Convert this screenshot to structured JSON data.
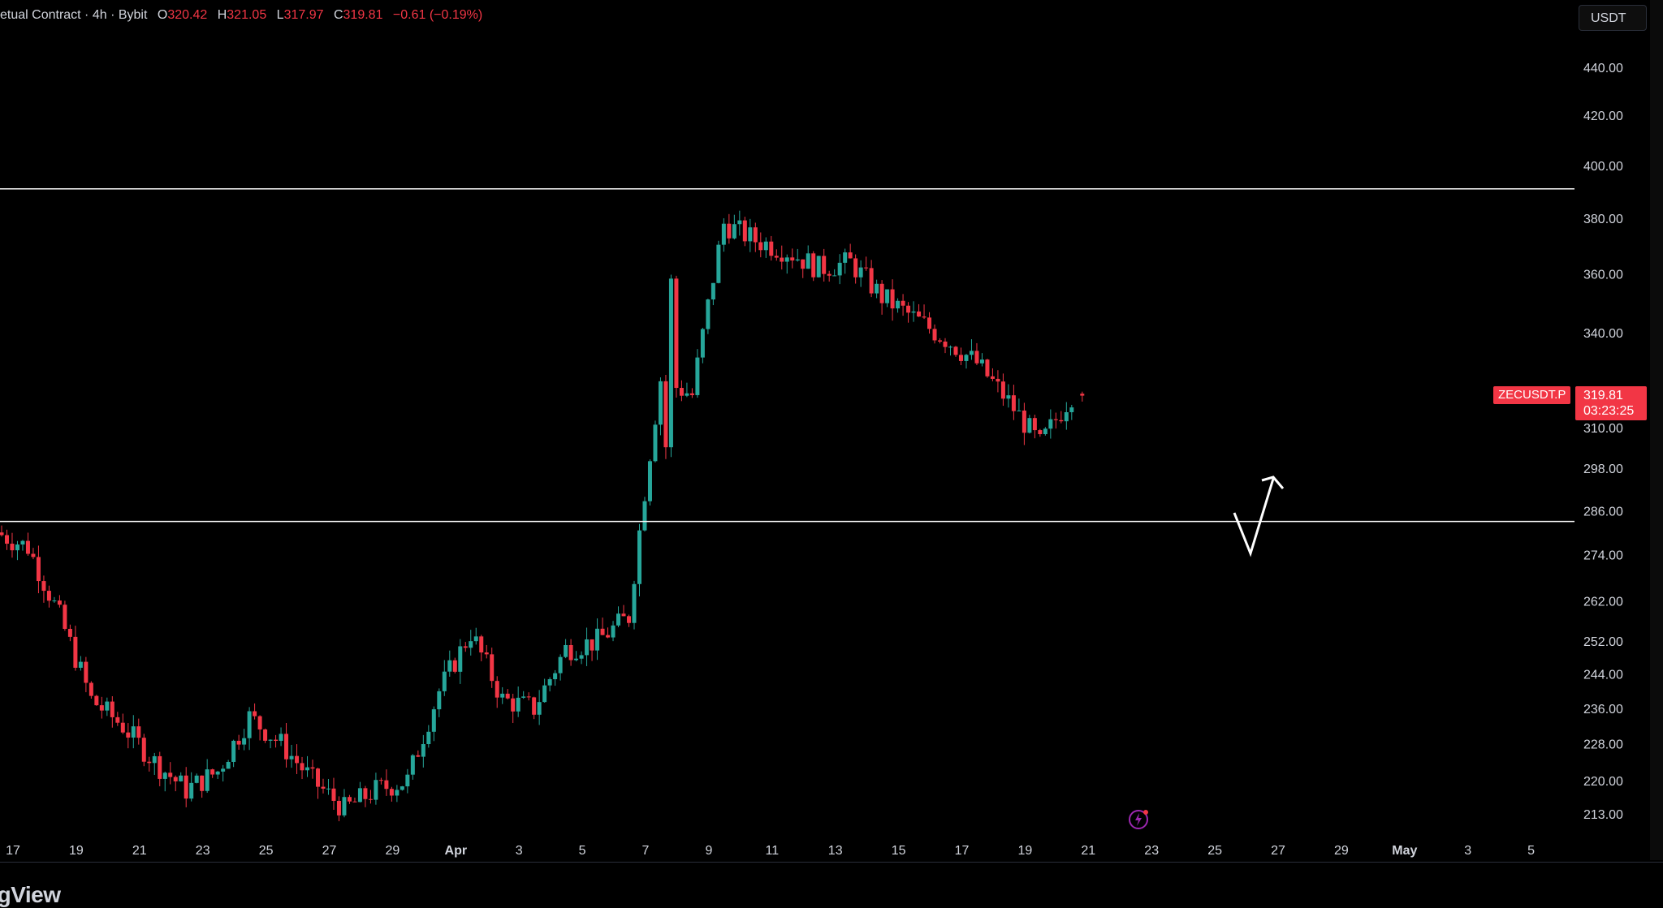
{
  "legend": {
    "title": "etual Contract · 4h · Bybit",
    "o_label": "O",
    "o_value": "320.42",
    "h_label": "H",
    "h_value": "321.05",
    "l_label": "L",
    "l_value": "317.97",
    "c_label": "C",
    "c_value": "319.81",
    "change": "−0.61 (−0.19%)"
  },
  "currency": "USDT",
  "symbol_tag": "ZECUSDT.P",
  "price_tag": {
    "price": "319.81",
    "countdown": "03:23:25"
  },
  "brand": "ngView",
  "colors": {
    "up": "#26a69a",
    "down": "#f23645",
    "background": "#000000",
    "line": "#ffffff",
    "text": "#d1d4dc",
    "bolt": "#9c27b0"
  },
  "chart_data": {
    "type": "candlestick",
    "symbol": "ZECUSDT.P",
    "interval": "4h",
    "exchange": "Bybit",
    "price_axis": {
      "ticks": [
        440,
        420,
        400,
        380,
        360,
        340,
        310,
        298,
        286,
        274,
        262,
        252,
        244,
        236,
        228,
        220,
        213
      ],
      "tick_labels": [
        "440.00",
        "420.00",
        "400.00",
        "380.00",
        "360.00",
        "340.00",
        "310.00",
        "298.00",
        "286.00",
        "274.00",
        "262.00",
        "252.00",
        "244.00",
        "236.00",
        "228.00",
        "220.00",
        "213.00"
      ],
      "scale": "log"
    },
    "time_axis": {
      "labels": [
        "17",
        "19",
        "21",
        "23",
        "25",
        "27",
        "29",
        "Apr",
        "3",
        "5",
        "7",
        "9",
        "11",
        "13",
        "15",
        "17",
        "19",
        "21",
        "23",
        "25",
        "27",
        "29",
        "May",
        "3",
        "5"
      ],
      "bold": [
        "Apr",
        "May"
      ]
    },
    "horizontal_lines": [
      391,
      283
    ],
    "path_points": [
      [
        "17",
        280
      ],
      [
        "18",
        276
      ],
      [
        "19",
        258
      ],
      [
        "20",
        238
      ],
      [
        "21",
        232
      ],
      [
        "22",
        224
      ],
      [
        "23",
        218
      ],
      [
        "24",
        222
      ],
      [
        "25",
        234
      ],
      [
        "26",
        228
      ],
      [
        "27",
        220
      ],
      [
        "28",
        214
      ],
      [
        "29",
        218
      ],
      [
        "30",
        220
      ],
      [
        "Apr 1",
        240
      ],
      [
        "Apr 2",
        254
      ],
      [
        "Apr 3",
        238
      ],
      [
        "Apr 4",
        236
      ],
      [
        "Apr 5",
        250
      ],
      [
        "Apr 6",
        252
      ],
      [
        "Apr 7",
        258
      ],
      [
        "Apr 8",
        325
      ],
      [
        "Apr 9",
        320
      ],
      [
        "Apr 10",
        378
      ],
      [
        "Apr 11",
        372
      ],
      [
        "Apr 12",
        368
      ],
      [
        "Apr 13",
        362
      ],
      [
        "Apr 14",
        364
      ],
      [
        "Apr 15",
        352
      ],
      [
        "Apr 16",
        345
      ],
      [
        "Apr 17",
        338
      ],
      [
        "Apr 18",
        330
      ],
      [
        "Apr 19",
        318
      ],
      [
        "Apr 20",
        305
      ],
      [
        "Apr 21",
        320
      ]
    ],
    "last": {
      "open": 320.42,
      "high": 321.05,
      "low": 317.97,
      "close": 319.81
    }
  }
}
